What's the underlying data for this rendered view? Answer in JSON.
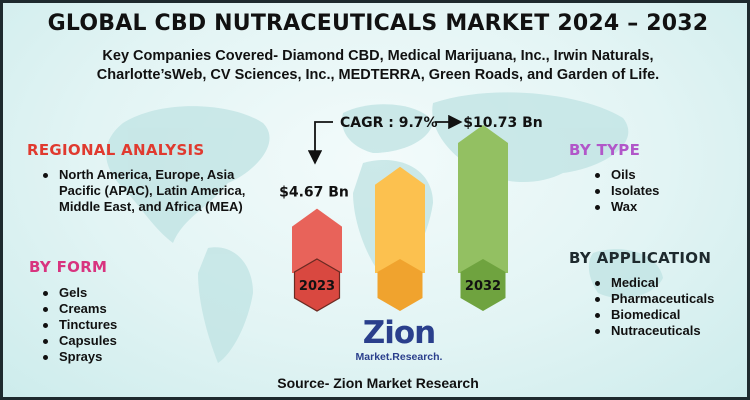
{
  "title": "GLOBAL CBD NUTRACEUTICALS MARKET 2024 – 2032",
  "subtitle_lines": [
    "Key Companies Covered- Diamond CBD, Medical Marijuana, Inc., Irwin Naturals,",
    "Charlotte’sWeb, CV Sciences, Inc., MEDTERRA, Green Roads, and Garden of Life."
  ],
  "regional": {
    "heading": "REGIONAL ANALYSIS",
    "items": [
      "North America, Europe, Asia Pacific (APAC), Latin America, Middle East, and Africa (MEA)"
    ]
  },
  "by_form": {
    "heading": "BY FORM",
    "items": [
      "Gels",
      "Creams",
      "Tinctures",
      "Capsules",
      "Sprays"
    ]
  },
  "by_type": {
    "heading": "BY TYPE",
    "items": [
      "Oils",
      "Isolates",
      "Wax"
    ]
  },
  "by_application": {
    "heading": "BY APPLICATION",
    "items": [
      "Medical",
      "Pharmaceuticals",
      "Biomedical",
      "Nutraceuticals"
    ]
  },
  "chart_data": {
    "type": "bar",
    "categories": [
      "2023",
      "",
      "2032"
    ],
    "values": [
      4.67,
      null,
      10.73
    ],
    "value_labels": [
      "$4.67 Bn",
      "",
      "$10.73 Bn"
    ],
    "cagr_label": "CAGR : 9.7%",
    "colors": [
      "#e8635a",
      "#fcc14f",
      "#93c062"
    ],
    "hex_colors": [
      "#d94840",
      "#f0a32e",
      "#6fa33f"
    ]
  },
  "logo": {
    "main": "Zion",
    "sub": "Market.Research."
  },
  "source": "Source- Zion Market Research",
  "colors": {
    "regional_heading": "#e03a2f",
    "form_heading": "#d8337f",
    "type_heading": "#b157c9",
    "application_heading": "#1e2a2e"
  }
}
